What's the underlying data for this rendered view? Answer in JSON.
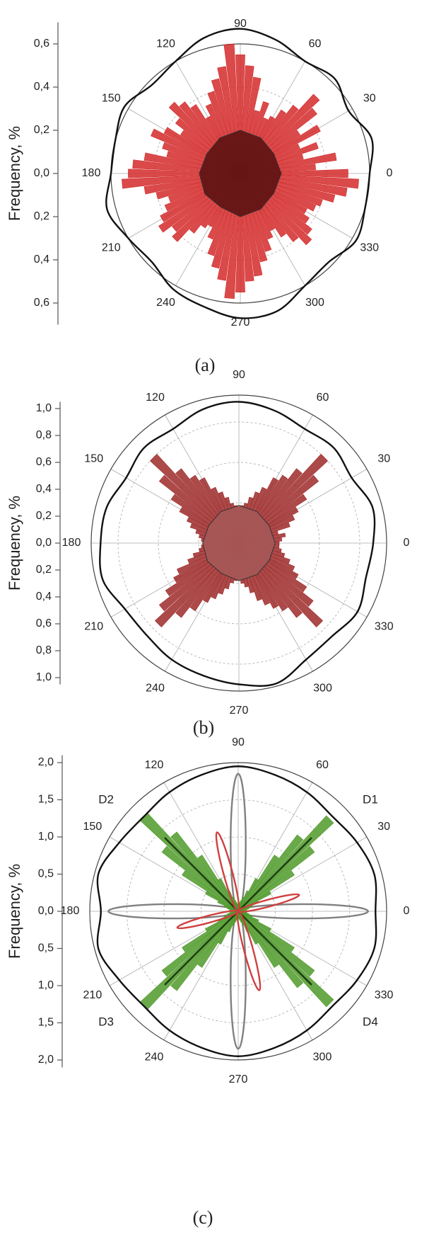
{
  "chart_data": [
    {
      "type": "polar",
      "ylabel": "Frequency, %",
      "caption": "(a)",
      "ylim": [
        -0.7,
        0.7
      ],
      "yticks": [
        {
          "value": 0.6,
          "label": "0,6"
        },
        {
          "value": 0.4,
          "label": "0,4"
        },
        {
          "value": 0.2,
          "label": "0,2"
        },
        {
          "value": 0,
          "label": "0,0"
        },
        {
          "value": -0.2,
          "label": "0,2"
        },
        {
          "value": -0.4,
          "label": "0,4"
        },
        {
          "value": -0.6,
          "label": "0,6"
        }
      ],
      "rlim": 0.6,
      "rgrid": [
        0.2,
        0.4
      ],
      "theta_ticks": [
        0,
        30,
        60,
        90,
        120,
        150,
        180,
        210,
        240,
        270,
        300,
        330
      ],
      "series": [
        {
          "kind": "bars",
          "color": "#d42a2a",
          "x": [
            0,
            5,
            10,
            15,
            20,
            25,
            30,
            35,
            40,
            45,
            50,
            55,
            60,
            65,
            70,
            75,
            80,
            85,
            90,
            95,
            100,
            105,
            110,
            115,
            120,
            125,
            130,
            135,
            140,
            145,
            150,
            155,
            160,
            165,
            170,
            175,
            180,
            185,
            190,
            195,
            200,
            205,
            210,
            215,
            220,
            225,
            230,
            235,
            240,
            245,
            250,
            255,
            260,
            265,
            270,
            275,
            280,
            285,
            290,
            295,
            300,
            305,
            310,
            315,
            320,
            325,
            330,
            335,
            340,
            345,
            350,
            355
          ],
          "values": [
            0.5,
            0.35,
            0.45,
            0.3,
            0.38,
            0.3,
            0.42,
            0.33,
            0.45,
            0.5,
            0.4,
            0.35,
            0.3,
            0.28,
            0.35,
            0.3,
            0.45,
            0.5,
            0.55,
            0.6,
            0.5,
            0.45,
            0.4,
            0.35,
            0.3,
            0.38,
            0.42,
            0.45,
            0.38,
            0.33,
            0.4,
            0.45,
            0.38,
            0.35,
            0.45,
            0.5,
            0.52,
            0.55,
            0.45,
            0.4,
            0.35,
            0.38,
            0.42,
            0.45,
            0.4,
            0.43,
            0.35,
            0.3,
            0.28,
            0.33,
            0.4,
            0.45,
            0.5,
            0.58,
            0.55,
            0.5,
            0.48,
            0.42,
            0.38,
            0.33,
            0.3,
            0.35,
            0.4,
            0.45,
            0.42,
            0.38,
            0.35,
            0.38,
            0.4,
            0.45,
            0.5,
            0.55
          ]
        },
        {
          "kind": "area",
          "color": "#5c1212",
          "x": [
            0,
            30,
            60,
            90,
            120,
            150,
            180,
            210,
            240,
            270,
            300,
            330
          ],
          "values": [
            0.19,
            0.18,
            0.19,
            0.2,
            0.19,
            0.18,
            0.19,
            0.19,
            0.18,
            0.2,
            0.19,
            0.18
          ]
        },
        {
          "kind": "line",
          "color": "#111111",
          "closed": true,
          "x": [
            0,
            15,
            30,
            45,
            60,
            75,
            90,
            105,
            120,
            135,
            150,
            165,
            180,
            195,
            210,
            225,
            240,
            255,
            270,
            285,
            300,
            315,
            330,
            345
          ],
          "values": [
            0.6,
            0.63,
            0.58,
            0.62,
            0.6,
            0.64,
            0.67,
            0.65,
            0.6,
            0.58,
            0.62,
            0.6,
            0.6,
            0.64,
            0.6,
            0.58,
            0.62,
            0.64,
            0.67,
            0.66,
            0.6,
            0.58,
            0.62,
            0.6
          ]
        }
      ]
    },
    {
      "type": "polar",
      "ylabel": "Frequency, %",
      "caption": "(b)",
      "ylim": [
        -1.05,
        1.05
      ],
      "yticks": [
        {
          "value": 1.0,
          "label": "1,0"
        },
        {
          "value": 0.8,
          "label": "0,8"
        },
        {
          "value": 0.6,
          "label": "0,6"
        },
        {
          "value": 0.4,
          "label": "0,4"
        },
        {
          "value": 0.2,
          "label": "0,2"
        },
        {
          "value": 0,
          "label": "0,0"
        },
        {
          "value": -0.2,
          "label": "0,2"
        },
        {
          "value": -0.4,
          "label": "0,4"
        },
        {
          "value": -0.6,
          "label": "0,6"
        },
        {
          "value": -0.8,
          "label": "0,8"
        },
        {
          "value": -1.0,
          "label": "1,0"
        }
      ],
      "rlim": 1.1,
      "rgrid": [
        0.3,
        0.6,
        0.9
      ],
      "theta_ticks": [
        0,
        30,
        60,
        90,
        120,
        150,
        180,
        210,
        240,
        270,
        300,
        330
      ],
      "series": [
        {
          "kind": "bars",
          "color": "#9e2a2a",
          "x": [
            0,
            5,
            10,
            15,
            20,
            25,
            30,
            35,
            40,
            45,
            50,
            55,
            60,
            65,
            70,
            75,
            80,
            85,
            90,
            95,
            100,
            105,
            110,
            115,
            120,
            125,
            130,
            135,
            140,
            145,
            150,
            155,
            160,
            165,
            170,
            175,
            180,
            185,
            190,
            195,
            200,
            205,
            210,
            215,
            220,
            225,
            230,
            235,
            240,
            245,
            250,
            255,
            260,
            265,
            270,
            275,
            280,
            285,
            290,
            295,
            300,
            305,
            310,
            315,
            320,
            325,
            330,
            335,
            340,
            345,
            350,
            355
          ],
          "values": [
            0.3,
            0.32,
            0.35,
            0.3,
            0.4,
            0.45,
            0.5,
            0.6,
            0.75,
            0.9,
            0.7,
            0.6,
            0.55,
            0.45,
            0.4,
            0.35,
            0.3,
            0.28,
            0.27,
            0.28,
            0.3,
            0.35,
            0.4,
            0.45,
            0.55,
            0.6,
            0.7,
            0.9,
            0.75,
            0.6,
            0.5,
            0.42,
            0.38,
            0.33,
            0.3,
            0.28,
            0.27,
            0.28,
            0.3,
            0.35,
            0.4,
            0.5,
            0.55,
            0.65,
            0.75,
            0.85,
            0.7,
            0.6,
            0.5,
            0.45,
            0.4,
            0.35,
            0.3,
            0.28,
            0.27,
            0.3,
            0.33,
            0.38,
            0.45,
            0.5,
            0.55,
            0.6,
            0.7,
            0.85,
            0.7,
            0.6,
            0.5,
            0.45,
            0.4,
            0.35,
            0.32,
            0.3
          ]
        },
        {
          "kind": "area",
          "color": "#a65858",
          "x": [
            0,
            30,
            60,
            90,
            120,
            150,
            180,
            210,
            240,
            270,
            300,
            330
          ],
          "values": [
            0.27,
            0.26,
            0.27,
            0.28,
            0.27,
            0.26,
            0.27,
            0.27,
            0.26,
            0.28,
            0.27,
            0.26
          ]
        },
        {
          "kind": "line",
          "color": "#111111",
          "closed": true,
          "x": [
            0,
            15,
            30,
            45,
            60,
            75,
            90,
            105,
            120,
            135,
            150,
            165,
            180,
            195,
            210,
            225,
            240,
            255,
            270,
            285,
            300,
            315,
            330,
            345
          ],
          "values": [
            1.0,
            1.03,
            0.97,
            1.0,
            0.98,
            1.02,
            1.05,
            1.03,
            0.98,
            1.0,
            0.97,
            1.02,
            1.03,
            1.05,
            0.98,
            0.97,
            1.0,
            1.02,
            1.05,
            1.08,
            1.0,
            0.98,
            1.02,
            0.98
          ]
        }
      ]
    },
    {
      "type": "polar",
      "ylabel": "Frequency, %",
      "caption": "(c)",
      "ylim": [
        -2.1,
        2.1
      ],
      "yticks": [
        {
          "value": 2.0,
          "label": "2,0"
        },
        {
          "value": 1.5,
          "label": "1,5"
        },
        {
          "value": 1.0,
          "label": "1,0"
        },
        {
          "value": 0.5,
          "label": "0,5"
        },
        {
          "value": 0,
          "label": "0,0"
        },
        {
          "value": -0.5,
          "label": "0,5"
        },
        {
          "value": -1.0,
          "label": "1,0"
        },
        {
          "value": -1.5,
          "label": "1,5"
        },
        {
          "value": -2.0,
          "label": "2,0"
        }
      ],
      "rlim": 2.0,
      "rgrid": [
        0.5,
        1.0,
        1.5
      ],
      "theta_ticks": [
        0,
        30,
        60,
        90,
        120,
        150,
        180,
        210,
        240,
        270,
        300,
        330
      ],
      "annotations": [
        "D1",
        "D2",
        "D3",
        "D4"
      ],
      "series": [
        {
          "kind": "petals",
          "color": "#808080",
          "x": [
            0,
            90,
            180,
            270
          ],
          "values": [
            1.75,
            1.85,
            1.75,
            1.85
          ]
        },
        {
          "kind": "bars",
          "color": "#4f9a2a",
          "x": [
            0,
            5,
            10,
            15,
            20,
            25,
            30,
            35,
            40,
            45,
            50,
            55,
            60,
            65,
            70,
            75,
            80,
            85,
            90,
            95,
            100,
            105,
            110,
            115,
            120,
            125,
            130,
            135,
            140,
            145,
            150,
            155,
            160,
            165,
            170,
            175,
            180,
            185,
            190,
            195,
            200,
            205,
            210,
            215,
            220,
            225,
            230,
            235,
            240,
            245,
            250,
            255,
            260,
            265,
            270,
            275,
            280,
            285,
            290,
            295,
            300,
            305,
            310,
            315,
            320,
            325,
            330,
            335,
            340,
            345,
            350,
            355
          ],
          "values": [
            0.1,
            0.1,
            0.12,
            0.15,
            0.2,
            0.3,
            0.5,
            0.9,
            1.3,
            1.75,
            1.3,
            0.9,
            0.5,
            0.3,
            0.2,
            0.15,
            0.12,
            0.1,
            0.1,
            0.1,
            0.12,
            0.15,
            0.2,
            0.3,
            0.5,
            0.9,
            1.35,
            1.8,
            1.3,
            0.9,
            0.5,
            0.3,
            0.2,
            0.15,
            0.12,
            0.1,
            0.1,
            0.1,
            0.12,
            0.15,
            0.2,
            0.3,
            0.5,
            0.9,
            1.3,
            1.8,
            1.35,
            0.9,
            0.5,
            0.3,
            0.2,
            0.15,
            0.12,
            0.1,
            0.1,
            0.1,
            0.12,
            0.15,
            0.2,
            0.3,
            0.5,
            0.9,
            1.3,
            1.75,
            1.3,
            0.9,
            0.5,
            0.3,
            0.2,
            0.15,
            0.12,
            0.1
          ]
        },
        {
          "kind": "rays",
          "color": "#1f3d12",
          "x": [
            45,
            135,
            225,
            315
          ],
          "values": [
            1.4,
            1.4,
            1.4,
            1.4
          ]
        },
        {
          "kind": "petals",
          "color": "#d04040",
          "x": [
            15,
            105,
            195,
            285
          ],
          "values": [
            0.85,
            1.1,
            0.85,
            1.1
          ]
        },
        {
          "kind": "line",
          "color": "#111111",
          "closed": true,
          "x": [
            0,
            15,
            30,
            45,
            60,
            75,
            90,
            105,
            120,
            135,
            150,
            165,
            180,
            195,
            210,
            225,
            240,
            255,
            270,
            285,
            300,
            315,
            330,
            345
          ],
          "values": [
            1.85,
            1.9,
            1.85,
            1.8,
            1.85,
            1.9,
            1.95,
            1.9,
            1.85,
            1.8,
            1.85,
            1.95,
            1.85,
            1.95,
            1.85,
            1.8,
            1.85,
            1.9,
            1.95,
            1.9,
            1.85,
            1.8,
            1.85,
            1.9
          ]
        }
      ]
    }
  ]
}
